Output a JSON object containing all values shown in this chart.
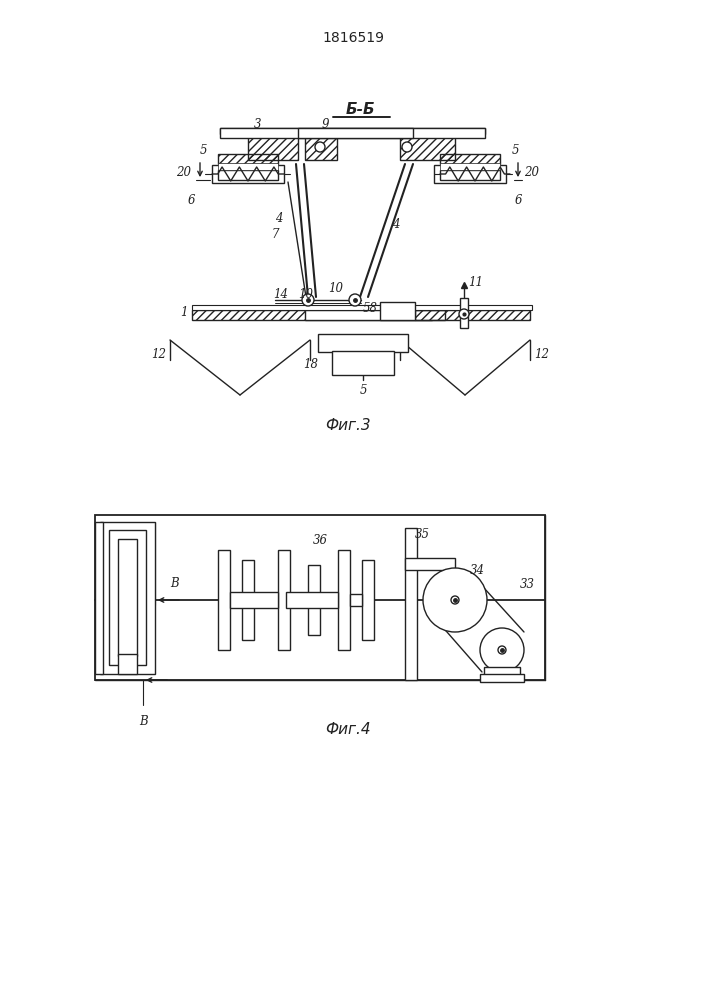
{
  "patent_number": "1816519",
  "fig3_label": "Фиг.3",
  "fig4_label": "Фиг.4",
  "section_label": "Б-Б",
  "line_color": "#222222",
  "fig_width": 7.07,
  "fig_height": 10.0
}
